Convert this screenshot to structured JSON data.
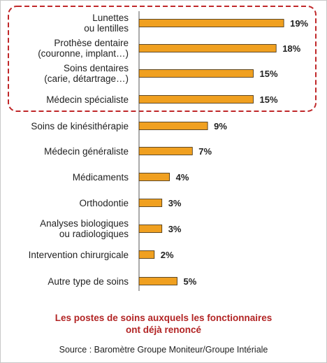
{
  "chart_data": {
    "type": "bar",
    "orientation": "horizontal",
    "categories": [
      [
        "Lunettes",
        "ou lentilles"
      ],
      [
        "Prothèse dentaire",
        "(couronne, implant…)"
      ],
      [
        "Soins dentaires",
        "(carie, détartrage…)"
      ],
      [
        "Médecin spécialiste"
      ],
      [
        "Soins de kinésithérapie"
      ],
      [
        "Médecin généraliste"
      ],
      [
        "Médicaments"
      ],
      [
        "Orthodontie"
      ],
      [
        "Analyses biologiques",
        "ou radiologiques"
      ],
      [
        "Intervention chirurgicale"
      ],
      [
        "Autre type de soins"
      ]
    ],
    "values": [
      19,
      18,
      15,
      15,
      9,
      7,
      4,
      3,
      3,
      2,
      5
    ],
    "value_labels": [
      "19%",
      "18%",
      "15%",
      "15%",
      "9%",
      "7%",
      "4%",
      "3%",
      "3%",
      "2%",
      "5%"
    ],
    "highlighted_count": 4,
    "bar_color": "#f0a020",
    "bar_border": "#3a2a10",
    "highlight_border_color": "#c0282a",
    "grid": false,
    "legend": "none"
  },
  "caption": {
    "line1": "Les postes de soins auxquels les fonctionnaires",
    "line2": "ont déjà renoncé"
  },
  "source": "Source : Baromètre Groupe Moniteur/Groupe Intériale"
}
